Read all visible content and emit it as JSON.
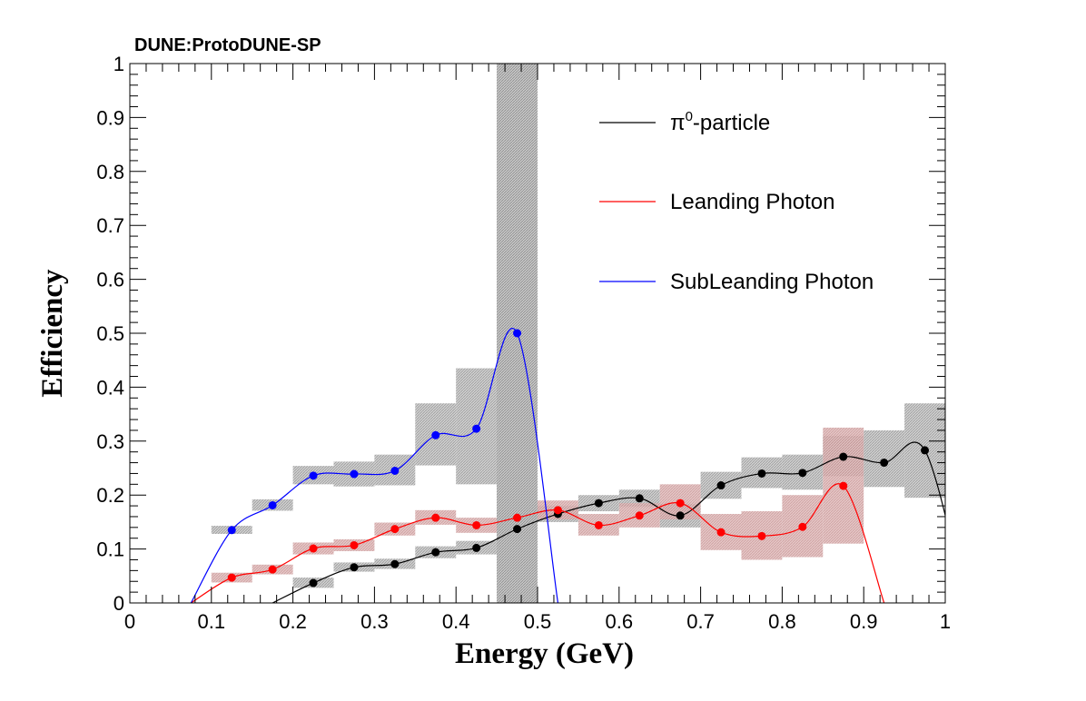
{
  "header": "DUNE:ProtoDUNE-SP",
  "chart_data": {
    "type": "scatter",
    "xlabel": "Energy (GeV)",
    "ylabel": "Efficiency",
    "xlim": [
      0,
      1
    ],
    "ylim": [
      0,
      1
    ],
    "x_ticks": [
      "0",
      "0.1",
      "0.2",
      "0.3",
      "0.4",
      "0.5",
      "0.6",
      "0.7",
      "0.8",
      "0.9",
      "1"
    ],
    "y_ticks": [
      "0",
      "0.1",
      "0.2",
      "0.3",
      "0.4",
      "0.5",
      "0.6",
      "0.7",
      "0.8",
      "0.9",
      "1"
    ],
    "legend_position": "top-right",
    "band": {
      "xmin": 0.45,
      "xmax": 0.5,
      "color": "#aaaaaa"
    },
    "series": [
      {
        "name": "π⁰-particle",
        "legend_main": "π",
        "legend_sup": "0",
        "legend_rest": "-particle",
        "color": "#000000",
        "band_color": "#b0b0b0",
        "points": [
          {
            "x": 0.225,
            "y": 0.037,
            "lo": 0.028,
            "hi": 0.047
          },
          {
            "x": 0.275,
            "y": 0.066,
            "lo": 0.058,
            "hi": 0.075
          },
          {
            "x": 0.325,
            "y": 0.072,
            "lo": 0.063,
            "hi": 0.082
          },
          {
            "x": 0.375,
            "y": 0.094,
            "lo": 0.083,
            "hi": 0.105
          },
          {
            "x": 0.425,
            "y": 0.102,
            "lo": 0.09,
            "hi": 0.115
          },
          {
            "x": 0.475,
            "y": 0.137,
            "lo": 0.122,
            "hi": 0.152
          },
          {
            "x": 0.525,
            "y": 0.165,
            "lo": 0.15,
            "hi": 0.18
          },
          {
            "x": 0.575,
            "y": 0.185,
            "lo": 0.17,
            "hi": 0.2
          },
          {
            "x": 0.625,
            "y": 0.194,
            "lo": 0.178,
            "hi": 0.21
          },
          {
            "x": 0.675,
            "y": 0.162,
            "lo": 0.14,
            "hi": 0.184
          },
          {
            "x": 0.725,
            "y": 0.218,
            "lo": 0.193,
            "hi": 0.243
          },
          {
            "x": 0.775,
            "y": 0.24,
            "lo": 0.213,
            "hi": 0.27
          },
          {
            "x": 0.825,
            "y": 0.241,
            "lo": 0.21,
            "hi": 0.275
          },
          {
            "x": 0.875,
            "y": 0.271,
            "lo": 0.235,
            "hi": 0.31
          },
          {
            "x": 0.925,
            "y": 0.26,
            "lo": 0.215,
            "hi": 0.32
          },
          {
            "x": 0.975,
            "y": 0.283,
            "lo": 0.195,
            "hi": 0.37
          }
        ]
      },
      {
        "name": "Leanding Photon",
        "color": "#ff0000",
        "band_color": "#d9a3a3",
        "points": [
          {
            "x": 0.125,
            "y": 0.047,
            "lo": 0.038,
            "hi": 0.056
          },
          {
            "x": 0.175,
            "y": 0.062,
            "lo": 0.053,
            "hi": 0.071
          },
          {
            "x": 0.225,
            "y": 0.101,
            "lo": 0.09,
            "hi": 0.112
          },
          {
            "x": 0.275,
            "y": 0.107,
            "lo": 0.096,
            "hi": 0.118
          },
          {
            "x": 0.325,
            "y": 0.137,
            "lo": 0.125,
            "hi": 0.149
          },
          {
            "x": 0.375,
            "y": 0.158,
            "lo": 0.145,
            "hi": 0.172
          },
          {
            "x": 0.425,
            "y": 0.144,
            "lo": 0.13,
            "hi": 0.158
          },
          {
            "x": 0.475,
            "y": 0.158,
            "lo": 0.143,
            "hi": 0.173
          },
          {
            "x": 0.525,
            "y": 0.172,
            "lo": 0.155,
            "hi": 0.19
          },
          {
            "x": 0.575,
            "y": 0.144,
            "lo": 0.125,
            "hi": 0.165
          },
          {
            "x": 0.625,
            "y": 0.162,
            "lo": 0.14,
            "hi": 0.185
          },
          {
            "x": 0.675,
            "y": 0.185,
            "lo": 0.155,
            "hi": 0.22
          },
          {
            "x": 0.725,
            "y": 0.131,
            "lo": 0.098,
            "hi": 0.165
          },
          {
            "x": 0.775,
            "y": 0.124,
            "lo": 0.08,
            "hi": 0.17
          },
          {
            "x": 0.825,
            "y": 0.141,
            "lo": 0.085,
            "hi": 0.2
          },
          {
            "x": 0.875,
            "y": 0.217,
            "lo": 0.11,
            "hi": 0.325
          }
        ]
      },
      {
        "name": "SubLeanding Photon",
        "color": "#0000ff",
        "band_color": "#b0b0b0",
        "points": [
          {
            "x": 0.125,
            "y": 0.135,
            "lo": 0.128,
            "hi": 0.143
          },
          {
            "x": 0.175,
            "y": 0.181,
            "lo": 0.171,
            "hi": 0.192
          },
          {
            "x": 0.225,
            "y": 0.236,
            "lo": 0.22,
            "hi": 0.254
          },
          {
            "x": 0.275,
            "y": 0.239,
            "lo": 0.216,
            "hi": 0.262
          },
          {
            "x": 0.325,
            "y": 0.245,
            "lo": 0.218,
            "hi": 0.275
          },
          {
            "x": 0.375,
            "y": 0.311,
            "lo": 0.255,
            "hi": 0.37
          },
          {
            "x": 0.425,
            "y": 0.323,
            "lo": 0.22,
            "hi": 0.435
          },
          {
            "x": 0.475,
            "y": 0.5,
            "lo": 0.0,
            "hi": 1.0
          }
        ]
      }
    ]
  }
}
